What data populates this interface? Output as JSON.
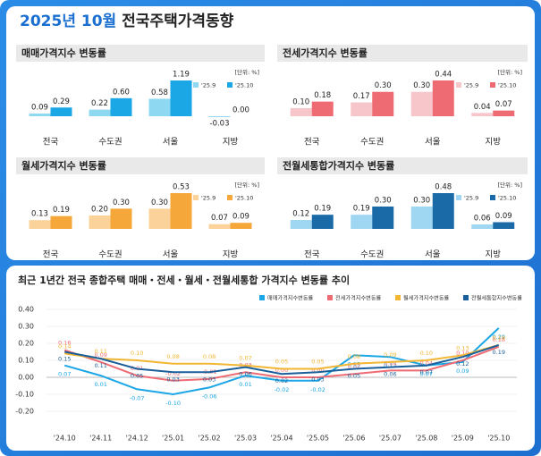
{
  "header": {
    "title_date": "2025년 10월",
    "title": "전국주택가격동향"
  },
  "chart_data": [
    {
      "type": "bar",
      "title": "매매가격지수 변동률",
      "unit": "[단위: %]",
      "categories": [
        "전국",
        "수도권",
        "서울",
        "지방"
      ],
      "series": [
        {
          "name": "'25.9",
          "color": "#8fd8f2",
          "values": [
            0.09,
            0.22,
            0.58,
            -0.03
          ],
          "value_labels": [
            "0.09",
            "0.22",
            "0.58",
            "-0.03"
          ]
        },
        {
          "name": "'25.10",
          "color": "#1ba6e5",
          "values": [
            0.29,
            0.6,
            1.19,
            0
          ],
          "value_labels": [
            "0.29",
            "0.60",
            "1.19",
            "0.00"
          ]
        }
      ]
    },
    {
      "type": "bar",
      "title": "전세가격지수 변동률",
      "unit": "[단위: %]",
      "categories": [
        "전국",
        "수도권",
        "서울",
        "지방"
      ],
      "series": [
        {
          "name": "'25.9",
          "color": "#f7c6ca",
          "values": [
            0.1,
            0.17,
            0.3,
            0.04
          ],
          "value_labels": [
            "0.10",
            "0.17",
            "0.30",
            "0.04"
          ]
        },
        {
          "name": "'25.10",
          "color": "#ee6b73",
          "values": [
            0.18,
            0.3,
            0.44,
            0.07
          ],
          "value_labels": [
            "0.18",
            "0.30",
            "0.44",
            "0.07"
          ]
        }
      ]
    },
    {
      "type": "bar",
      "title": "월세가격지수 변동률",
      "unit": "[단위: %]",
      "categories": [
        "전국",
        "수도권",
        "서울",
        "지방"
      ],
      "series": [
        {
          "name": "'25.9",
          "color": "#fbd39a",
          "values": [
            0.13,
            0.2,
            0.3,
            0.07
          ],
          "value_labels": [
            "0.13",
            "0.20",
            "0.30",
            "0.07"
          ]
        },
        {
          "name": "'25.10",
          "color": "#f5a73a",
          "values": [
            0.19,
            0.3,
            0.53,
            0.09
          ],
          "value_labels": [
            "0.19",
            "0.30",
            "0.53",
            "0.09"
          ]
        }
      ]
    },
    {
      "type": "bar",
      "title": "전월세통합가격지수 변동률",
      "unit": "[단위: %]",
      "categories": [
        "전국",
        "수도권",
        "서울",
        "지방"
      ],
      "series": [
        {
          "name": "'25.9",
          "color": "#9fd6f2",
          "values": [
            0.12,
            0.19,
            0.3,
            0.06
          ],
          "value_labels": [
            "0.12",
            "0.19",
            "0.30",
            "0.06"
          ]
        },
        {
          "name": "'25.10",
          "color": "#1a6aa8",
          "values": [
            0.19,
            0.3,
            0.48,
            0.09
          ],
          "value_labels": [
            "0.19",
            "0.30",
            "0.48",
            "0.09"
          ]
        }
      ]
    },
    {
      "type": "line",
      "title": "최근 1년간 전국 종합주택 매매・전세・월세・전월세통합 가격지수 변동률 추이",
      "categories": [
        "'24.10",
        "'24.11",
        "'24.12",
        "'25.01",
        "'25.02",
        "'25.03",
        "'25.04",
        "'25.05",
        "'25.06",
        "'25.07",
        "'25.08",
        "'25.09",
        "'25.10"
      ],
      "ylim": [
        -0.2,
        0.4
      ],
      "yticks": [
        {
          "value": -0.2,
          "label": "-0.20"
        },
        {
          "value": -0.1,
          "label": "-0.10"
        },
        {
          "value": 0,
          "label": "0.00"
        },
        {
          "value": 0.1,
          "label": "0.10"
        },
        {
          "value": 0.2,
          "label": "0.20"
        },
        {
          "value": 0.3,
          "label": "0.30"
        },
        {
          "value": 0.4,
          "label": "0.40"
        }
      ],
      "grid": true,
      "series": [
        {
          "name": "매매가격지수변동률",
          "color": "#1ba6e5",
          "values": [
            0.07,
            0.01,
            -0.07,
            -0.1,
            -0.06,
            0.01,
            -0.02,
            -0.02,
            0.13,
            0.12,
            0.07,
            0.09,
            0.29
          ],
          "value_labels": [
            "0.07",
            "0.01",
            "-0.07",
            "-0.10",
            "-0.06",
            "0.01",
            "-0.02",
            "-0.02",
            "0.13",
            "0.12",
            "0.07",
            "0.09",
            "0.29"
          ]
        },
        {
          "name": "전세가격지수변동률",
          "color": "#ee6b73",
          "values": [
            0.16,
            0.09,
            0.01,
            -0.02,
            -0.01,
            0.03,
            0,
            0,
            0.02,
            0.04,
            0.04,
            0.1,
            0.18
          ],
          "value_labels": [
            "0.16",
            "0.09",
            "0.01",
            "-0.02",
            "-0.01",
            "0.03",
            "0.00",
            "0.00",
            "0.02",
            "0.04",
            "0.04",
            "0.10",
            "0.18"
          ]
        },
        {
          "name": "월세가격지수변동률",
          "color": "#f2b632",
          "values": [
            0.14,
            0.11,
            0.1,
            0.08,
            0.08,
            0.07,
            0.05,
            0.05,
            0.08,
            0.09,
            0.1,
            0.13,
            0.19
          ],
          "value_labels": [
            "0.14",
            "0.11",
            "0.10",
            "0.08",
            "0.08",
            "0.07",
            "0.05",
            "0.05",
            "0.08",
            "0.09",
            "0.10",
            "0.13",
            "0.19"
          ]
        },
        {
          "name": "전월세통합지수변동률",
          "color": "#1a5f9a",
          "values": [
            0.15,
            0.11,
            0.05,
            0.03,
            0.03,
            0.06,
            0.02,
            0.03,
            0.05,
            0.06,
            0.07,
            0.12,
            0.19
          ],
          "value_labels": [
            "0.15",
            "0.11",
            "0.05",
            "0.03",
            "0.03",
            "0.06",
            "0.02",
            "0.03",
            "0.05",
            "0.06",
            "0.07",
            "0.12",
            "0.19"
          ]
        }
      ]
    }
  ]
}
